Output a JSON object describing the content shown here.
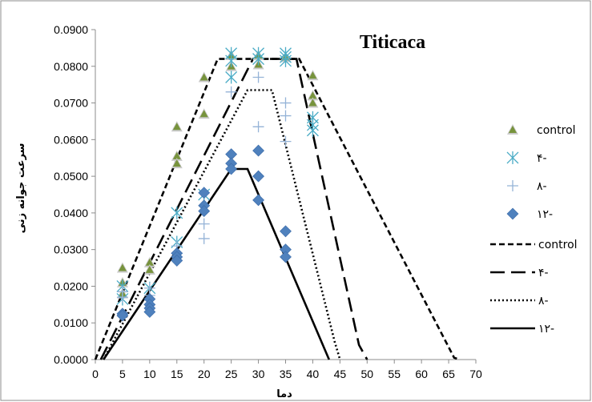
{
  "chart_data": {
    "type": "scatter",
    "title": "Titicaca",
    "xlabel": "دما",
    "ylabel": "سرعت جوانه زنی",
    "xlim": [
      0,
      70
    ],
    "ylim": [
      0,
      0.09
    ],
    "x_ticks": [
      "0",
      "5",
      "10",
      "15",
      "20",
      "25",
      "30",
      "35",
      "40",
      "45",
      "50",
      "55",
      "60",
      "65",
      "70"
    ],
    "y_ticks": [
      "0.0000",
      "0.0100",
      "0.0200",
      "0.0300",
      "0.0400",
      "0.0500",
      "0.0600",
      "0.0700",
      "0.0800",
      "0.0900"
    ],
    "grid": false,
    "legend_position": "right",
    "scatter_series": [
      {
        "name": "control",
        "marker": "triangle",
        "color": "#77933c",
        "points": [
          [
            5,
            0.025
          ],
          [
            5,
            0.021
          ],
          [
            5,
            0.018
          ],
          [
            10,
            0.0265
          ],
          [
            10,
            0.0245
          ],
          [
            15,
            0.0635
          ],
          [
            15,
            0.0555
          ],
          [
            15,
            0.0535
          ],
          [
            20,
            0.077
          ],
          [
            20,
            0.067
          ],
          [
            25,
            0.083
          ],
          [
            25,
            0.08
          ],
          [
            30,
            0.083
          ],
          [
            30,
            0.0805
          ],
          [
            35,
            0.0825
          ],
          [
            40,
            0.0775
          ],
          [
            40,
            0.072
          ],
          [
            40,
            0.07
          ]
        ]
      },
      {
        "name": "۴-",
        "marker": "asterisk",
        "color": "#4bacc6",
        "points": [
          [
            5,
            0.02
          ],
          [
            5,
            0.0165
          ],
          [
            10,
            0.0195
          ],
          [
            15,
            0.04
          ],
          [
            15,
            0.032
          ],
          [
            20,
            0.045
          ],
          [
            25,
            0.0835
          ],
          [
            25,
            0.0815
          ],
          [
            25,
            0.077
          ],
          [
            30,
            0.0835
          ],
          [
            30,
            0.082
          ],
          [
            35,
            0.0835
          ],
          [
            35,
            0.0825
          ],
          [
            35,
            0.0815
          ],
          [
            40,
            0.066
          ],
          [
            40,
            0.064
          ],
          [
            40,
            0.0625
          ]
        ]
      },
      {
        "name": "۸-",
        "marker": "plus",
        "color": "#95b3d7",
        "points": [
          [
            5,
            0.0185
          ],
          [
            5,
            0.017
          ],
          [
            10,
            0.0195
          ],
          [
            10,
            0.0175
          ],
          [
            15,
            0.031
          ],
          [
            15,
            0.029
          ],
          [
            20,
            0.037
          ],
          [
            20,
            0.033
          ],
          [
            25,
            0.073
          ],
          [
            30,
            0.077
          ],
          [
            30,
            0.0635
          ],
          [
            35,
            0.07
          ],
          [
            35,
            0.0665
          ],
          [
            35,
            0.0595
          ]
        ]
      },
      {
        "name": "۱۲-",
        "marker": "diamond",
        "color": "#4f81bd",
        "points": [
          [
            5,
            0.0125
          ],
          [
            5,
            0.012
          ],
          [
            10,
            0.0165
          ],
          [
            10,
            0.015
          ],
          [
            10,
            0.014
          ],
          [
            10,
            0.013
          ],
          [
            15,
            0.029
          ],
          [
            15,
            0.028
          ],
          [
            15,
            0.027
          ],
          [
            20,
            0.0455
          ],
          [
            20,
            0.042
          ],
          [
            20,
            0.0405
          ],
          [
            25,
            0.056
          ],
          [
            25,
            0.0535
          ],
          [
            25,
            0.052
          ],
          [
            30,
            0.057
          ],
          [
            30,
            0.05
          ],
          [
            30,
            0.0435
          ],
          [
            35,
            0.035
          ],
          [
            35,
            0.03
          ],
          [
            35,
            0.028
          ]
        ]
      }
    ],
    "line_series": [
      {
        "name": "control",
        "dash": "short-dash",
        "points": [
          [
            0,
            0
          ],
          [
            22.5,
            0.082
          ],
          [
            37.5,
            0.082
          ],
          [
            66,
            0.0005
          ],
          [
            67,
            0
          ]
        ]
      },
      {
        "name": "۴-",
        "dash": "long-dash",
        "points": [
          [
            1,
            0
          ],
          [
            29,
            0.082
          ],
          [
            37,
            0.082
          ],
          [
            48.5,
            0.004
          ],
          [
            50,
            0
          ]
        ]
      },
      {
        "name": "۸-",
        "dash": "dot",
        "points": [
          [
            1.5,
            0
          ],
          [
            28,
            0.0735
          ],
          [
            32.5,
            0.0735
          ],
          [
            44,
            0.005
          ],
          [
            45,
            0
          ]
        ]
      },
      {
        "name": "۱۲-",
        "dash": "solid",
        "points": [
          [
            1.5,
            0
          ],
          [
            25,
            0.052
          ],
          [
            28,
            0.052
          ],
          [
            43,
            0
          ]
        ]
      }
    ]
  }
}
